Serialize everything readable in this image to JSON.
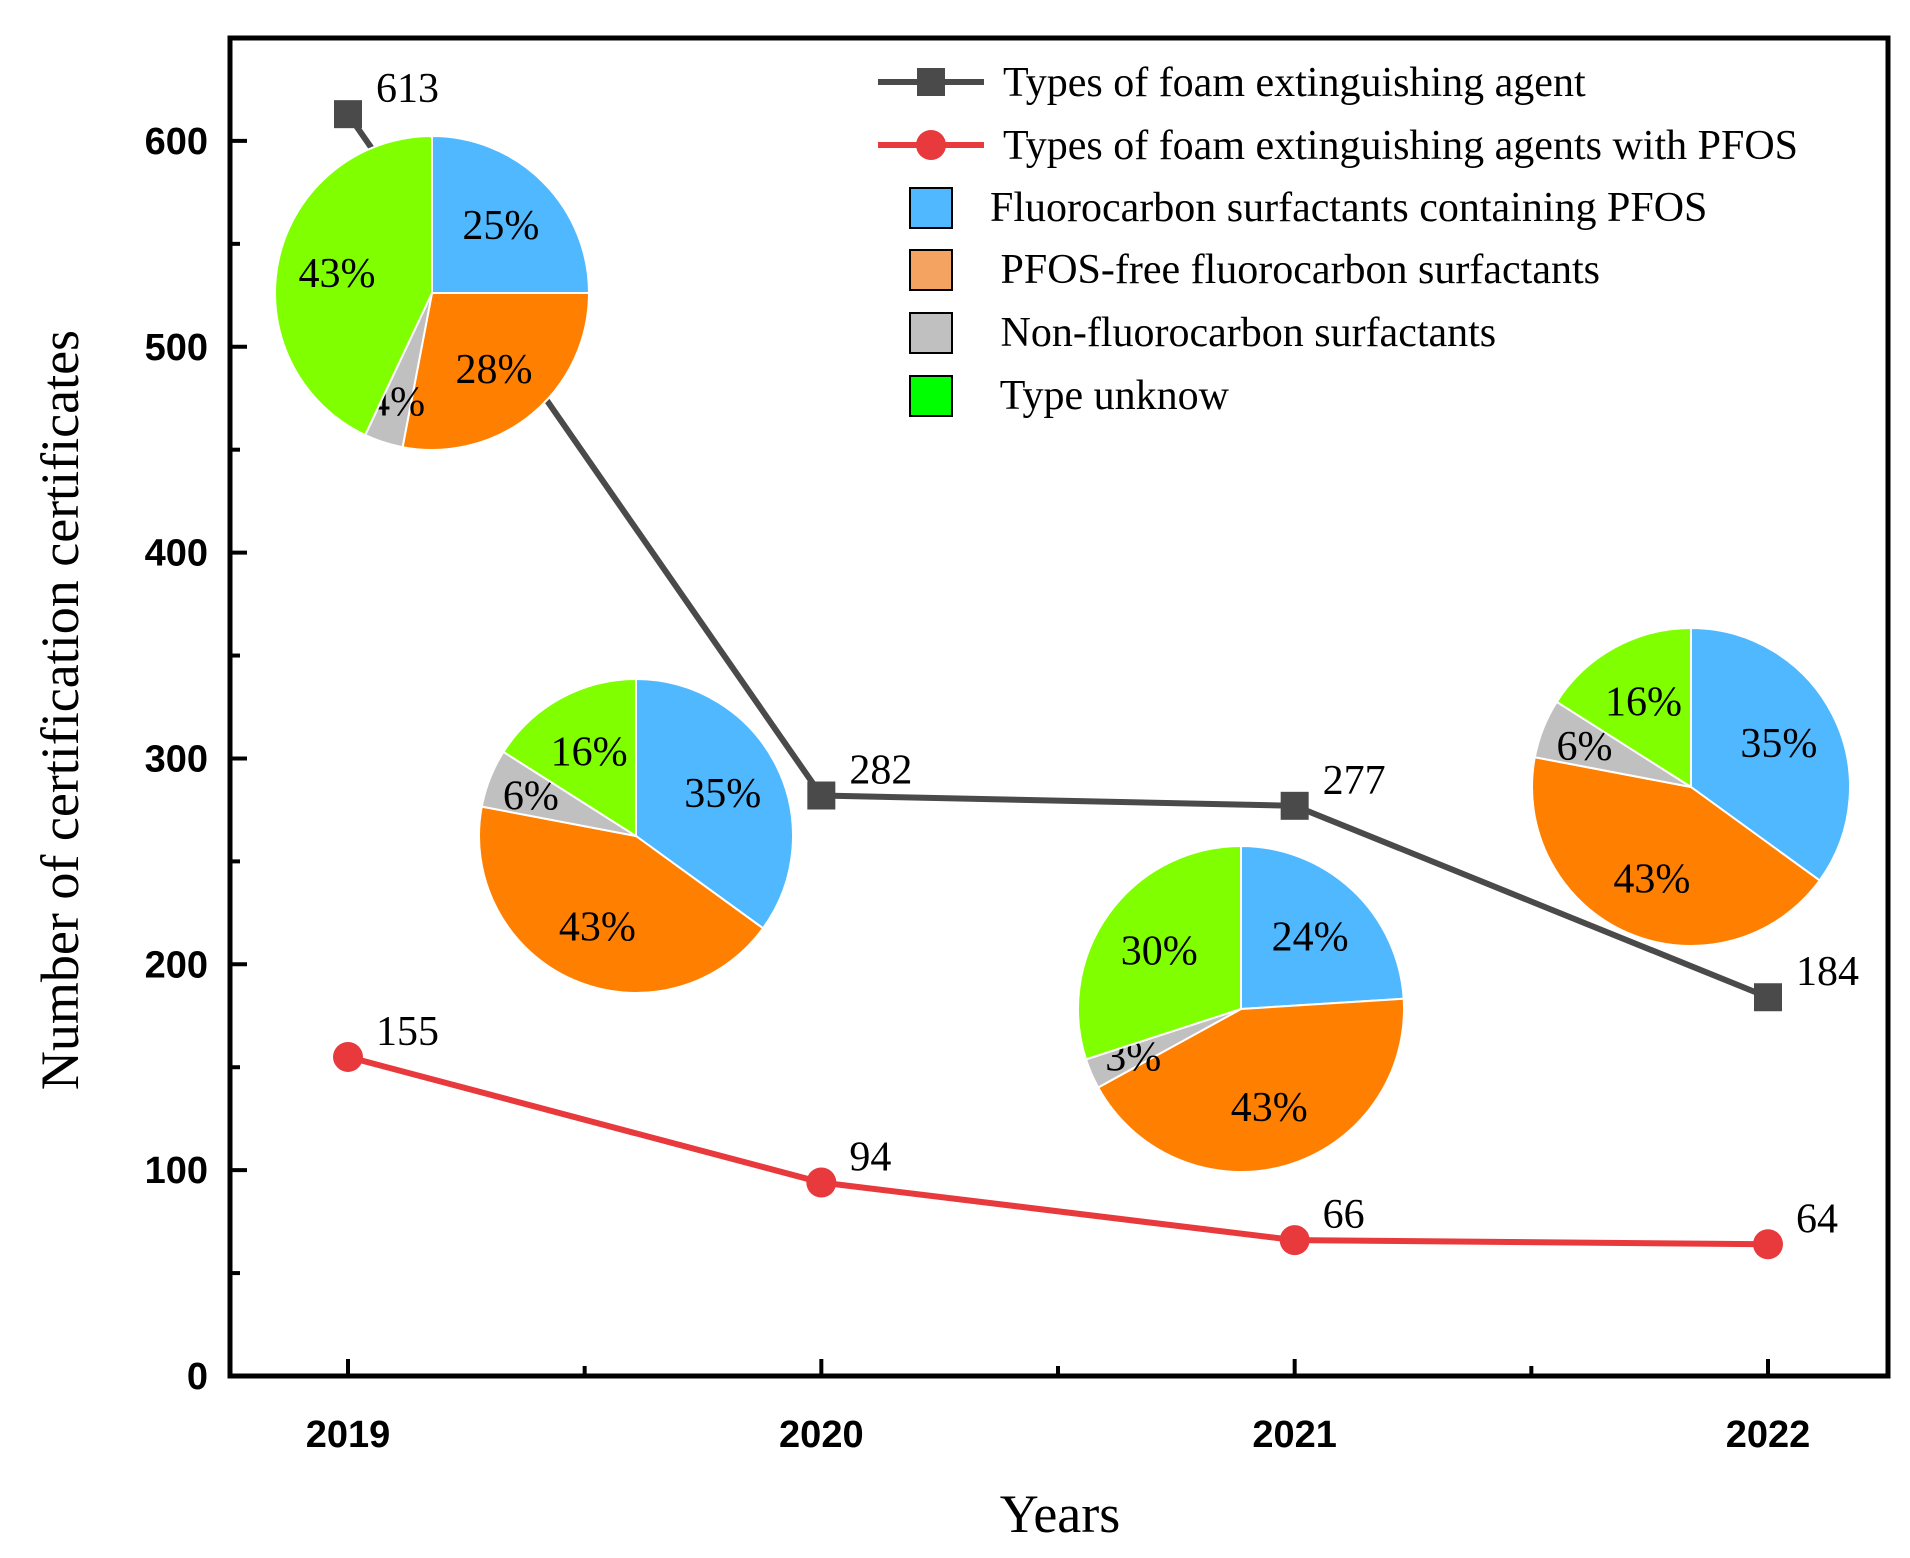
{
  "chart_data": {
    "type": "line",
    "xlabel": "Years",
    "ylabel": "Number of certification certificates",
    "categories": [
      "2019",
      "2020",
      "2021",
      "2022"
    ],
    "ylim": [
      0,
      650
    ],
    "yticks": [
      0,
      100,
      200,
      300,
      400,
      500,
      600
    ],
    "ytick_labels": [
      "0",
      "100",
      "200",
      "300",
      "400",
      "500",
      "600"
    ],
    "series": [
      {
        "name": "Types of foam extinguishing agent",
        "marker": "square",
        "color": "#4a4a4a",
        "values": [
          613,
          282,
          277,
          184
        ],
        "labels": [
          "613",
          "282",
          "277",
          "184"
        ]
      },
      {
        "name": "Types of foam extinguishing agents with PFOS",
        "marker": "circle",
        "color": "#e8393c",
        "values": [
          155,
          94,
          66,
          64
        ],
        "labels": [
          "155",
          "94",
          "66",
          "64"
        ]
      }
    ],
    "pie_categories": [
      {
        "name": "Fluorocarbon surfactants containing PFOS",
        "color": "#50b8ff"
      },
      {
        "name": "PFOS-free fluorocarbon surfactants",
        "color": "#ff8000"
      },
      {
        "name": "Non-fluorocarbon surfactants",
        "color": "#c0c0c0"
      },
      {
        "name": "Type unknow",
        "color": "#80ff00"
      }
    ],
    "legend_pie_swatch_colors": [
      "#50b8ff",
      "#f4a460",
      "#c0c0c0",
      "#00ff00"
    ],
    "legend_pie_labels": [
      "Fluorocarbon surfactants containing PFOS",
      " PFOS-free fluorocarbon surfactants",
      " Non-fluorocarbon surfactants",
      " Type unknow"
    ],
    "legend_position": "top-right",
    "pies": [
      {
        "year": "2019",
        "values": [
          25,
          28,
          4,
          43
        ],
        "labels": [
          "25%",
          "28%",
          "4%",
          "43%"
        ]
      },
      {
        "year": "2020",
        "values": [
          35,
          43,
          6,
          16
        ],
        "labels": [
          "35%",
          "43%",
          "6%",
          "16%"
        ]
      },
      {
        "year": "2021",
        "values": [
          24,
          43,
          3,
          30
        ],
        "labels": [
          "24%",
          "43%",
          "3%",
          "30%"
        ]
      },
      {
        "year": "2022",
        "values": [
          35,
          43,
          6,
          16
        ],
        "labels": [
          "35%",
          "43%",
          "6%",
          "16%"
        ]
      }
    ]
  }
}
